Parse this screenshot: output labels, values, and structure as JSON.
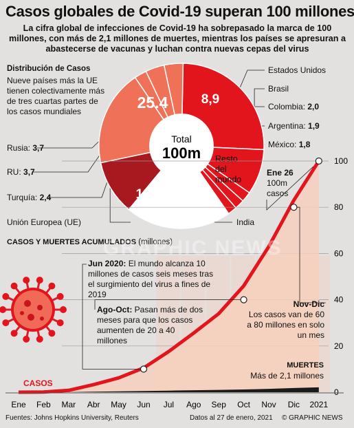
{
  "title": "Casos globales de Covid-19 superan 100 millones",
  "subtitle": "La cifra global de infecciones de Covid-19 ha sobrepasado la marca de 100 millones, con más de 2,1 millones de muertes, mientras los países se apresuran a abastecerse de vacunas y luchan contra nuevas cepas del virus",
  "distribution": {
    "heading": "Distribución de Casos",
    "description": "Nueve países más la UE tienen colectivamente más de tres cuartas partes de los casos mundiales",
    "center_label": "Total",
    "center_value": "100m",
    "labels": {
      "us": "Estados Unidos",
      "brazil": "Brasil",
      "colombia": "Colombia:",
      "colombia_v": "2,0",
      "argentina": "Argentina:",
      "argentina_v": "1,9",
      "mexico": "México:",
      "mexico_v": "1,8",
      "russia": "Rusia:",
      "russia_v": "3,7",
      "uk": "RU:",
      "uk_v": "3,7",
      "turkey": "Turquía:",
      "turkey_v": "2,4",
      "eu": "Unión Europea (UE)",
      "india": "India",
      "rest": "Resto del mundo"
    },
    "slice_labels": {
      "us": "25.4",
      "brazil": "8,9",
      "eu": "18,8",
      "india": "10,7"
    }
  },
  "chart_data": [
    {
      "type": "pie",
      "title": "Distribución de Casos",
      "unit": "millones",
      "slices": [
        {
          "name": "Estados Unidos",
          "value": 25.4,
          "color": "#e2141c"
        },
        {
          "name": "Brasil",
          "value": 8.9,
          "color": "#e2141c"
        },
        {
          "name": "Colombia",
          "value": 2.0,
          "color": "#e2141c"
        },
        {
          "name": "Argentina",
          "value": 1.9,
          "color": "#e2141c"
        },
        {
          "name": "México",
          "value": 1.8,
          "color": "#e2141c"
        },
        {
          "name": "Resto del mundo",
          "value": 20.7,
          "color": "#ffffff"
        },
        {
          "name": "India",
          "value": 10.7,
          "color": "#a8181f"
        },
        {
          "name": "Unión Europea (UE)",
          "value": 18.8,
          "color": "#ef7158"
        },
        {
          "name": "Turquía",
          "value": 2.4,
          "color": "#ef7158"
        },
        {
          "name": "RU",
          "value": 3.7,
          "color": "#ef7158"
        },
        {
          "name": "Rusia",
          "value": 3.7,
          "color": "#ef7158"
        }
      ]
    },
    {
      "type": "area",
      "title": "Casos y Muertes acumulados",
      "ylabel": "(millones)",
      "categories": [
        "Ene",
        "Feb",
        "Mar",
        "Abr",
        "May",
        "Jun",
        "Jul",
        "Ago",
        "Sep",
        "Oct",
        "Nov",
        "Dic",
        "2021"
      ],
      "ylim": [
        0,
        100
      ],
      "yticks": [
        0,
        20,
        40,
        60,
        80,
        100
      ],
      "series": [
        {
          "name": "Casos",
          "color": "#e2141c",
          "values": [
            0.01,
            0.1,
            0.8,
            3.3,
            6.2,
            10.5,
            17.6,
            25.6,
            34,
            46,
            63,
            83,
            100
          ]
        },
        {
          "name": "Muertes",
          "color": "#111111",
          "values": [
            0,
            0,
            0.04,
            0.23,
            0.37,
            0.51,
            0.68,
            0.85,
            1.01,
            1.19,
            1.46,
            1.81,
            2.1
          ]
        }
      ],
      "highlights": [
        {
          "x": 5.5,
          "y": 10
        },
        {
          "x": 9.5,
          "y": 40
        },
        {
          "x": 11.5,
          "y": 80
        },
        {
          "x": 12.5,
          "y": 100
        }
      ]
    }
  ],
  "cumulative": {
    "heading": "Casos y Muertes acumulados",
    "unit": "(millones)",
    "cases_label": "Casos",
    "ann_jun_bold": "Jun 2020:",
    "ann_jun": "El mundo alcanza 10 millones de casos seis meses tras el surgimiento del virus a fines de 2019",
    "ann_ago_bold": "Ago-Oct:",
    "ann_ago": "Pasan más de dos meses para que los casos aumenten de 20 a 40 millones",
    "ann_nov_bold": "Nov-Dic",
    "ann_nov": "Los casos van de 60 a 80 millones en solo un mes",
    "ann_ene_bold": "Ene 26",
    "ann_ene": "100m casos",
    "deaths_bold": "Muertes",
    "deaths": "Más de 2,1 millones"
  },
  "footer": {
    "sources": "Fuentes: Johns Hopkins University, Reuters",
    "date": "Datos al 27 de enero, 2021",
    "credit": "© GRAPHIC NEWS"
  },
  "watermark": {
    "text": "GRAPHIC NEWS"
  },
  "colors": {
    "red": "#e2141c",
    "orange": "#ef7158",
    "dark_red": "#a8181f",
    "background": "#e3e1e0",
    "salmon_band": "#f7cfbd"
  }
}
